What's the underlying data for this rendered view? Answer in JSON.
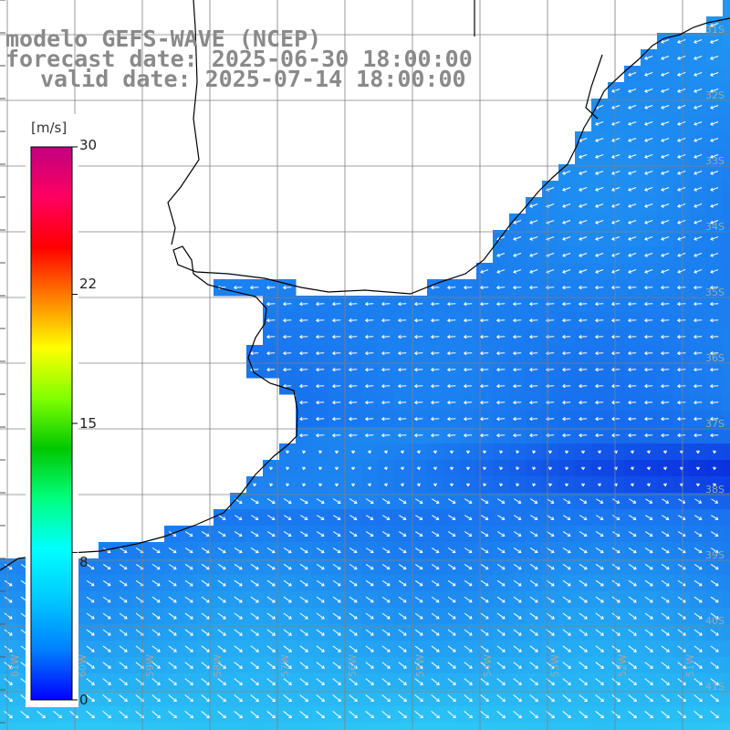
{
  "title": {
    "line1": "modelo GEFS-WAVE (NCEP)",
    "line2": "forecast date: 2025-06-30 18:00:00",
    "line3": "valid date: 2025-07-14 18:00:00"
  },
  "colorbar": {
    "unit": "[m/s]",
    "ticks": [
      "30",
      "22",
      "15",
      "8",
      "0"
    ],
    "tick_values": [
      30,
      22,
      15,
      8,
      0
    ],
    "colors": [
      "#0000ff",
      "#0080ff",
      "#00c8ff",
      "#00ffff",
      "#00ff80",
      "#00c800",
      "#80ff00",
      "#ffff00",
      "#ff8000",
      "#ff0000",
      "#ff0060",
      "#c00080"
    ]
  },
  "grid": {
    "lat_labels": [
      "31S",
      "32S",
      "33S",
      "34S",
      "35S",
      "36S",
      "37S",
      "38S",
      "39S",
      "40S",
      "41S"
    ],
    "lon_labels": [
      "61W",
      "60W",
      "59W",
      "58W",
      "57W",
      "56W",
      "55W",
      "54W",
      "53W",
      "52W",
      "51W"
    ]
  },
  "field_colors": {
    "ocean_low": "#0a2ee0",
    "ocean_mid": "#1a7cf0",
    "ocean_high": "#2fd6f6",
    "land": "#ffffff",
    "coast": "#000000",
    "arrow": "#ffffff"
  }
}
